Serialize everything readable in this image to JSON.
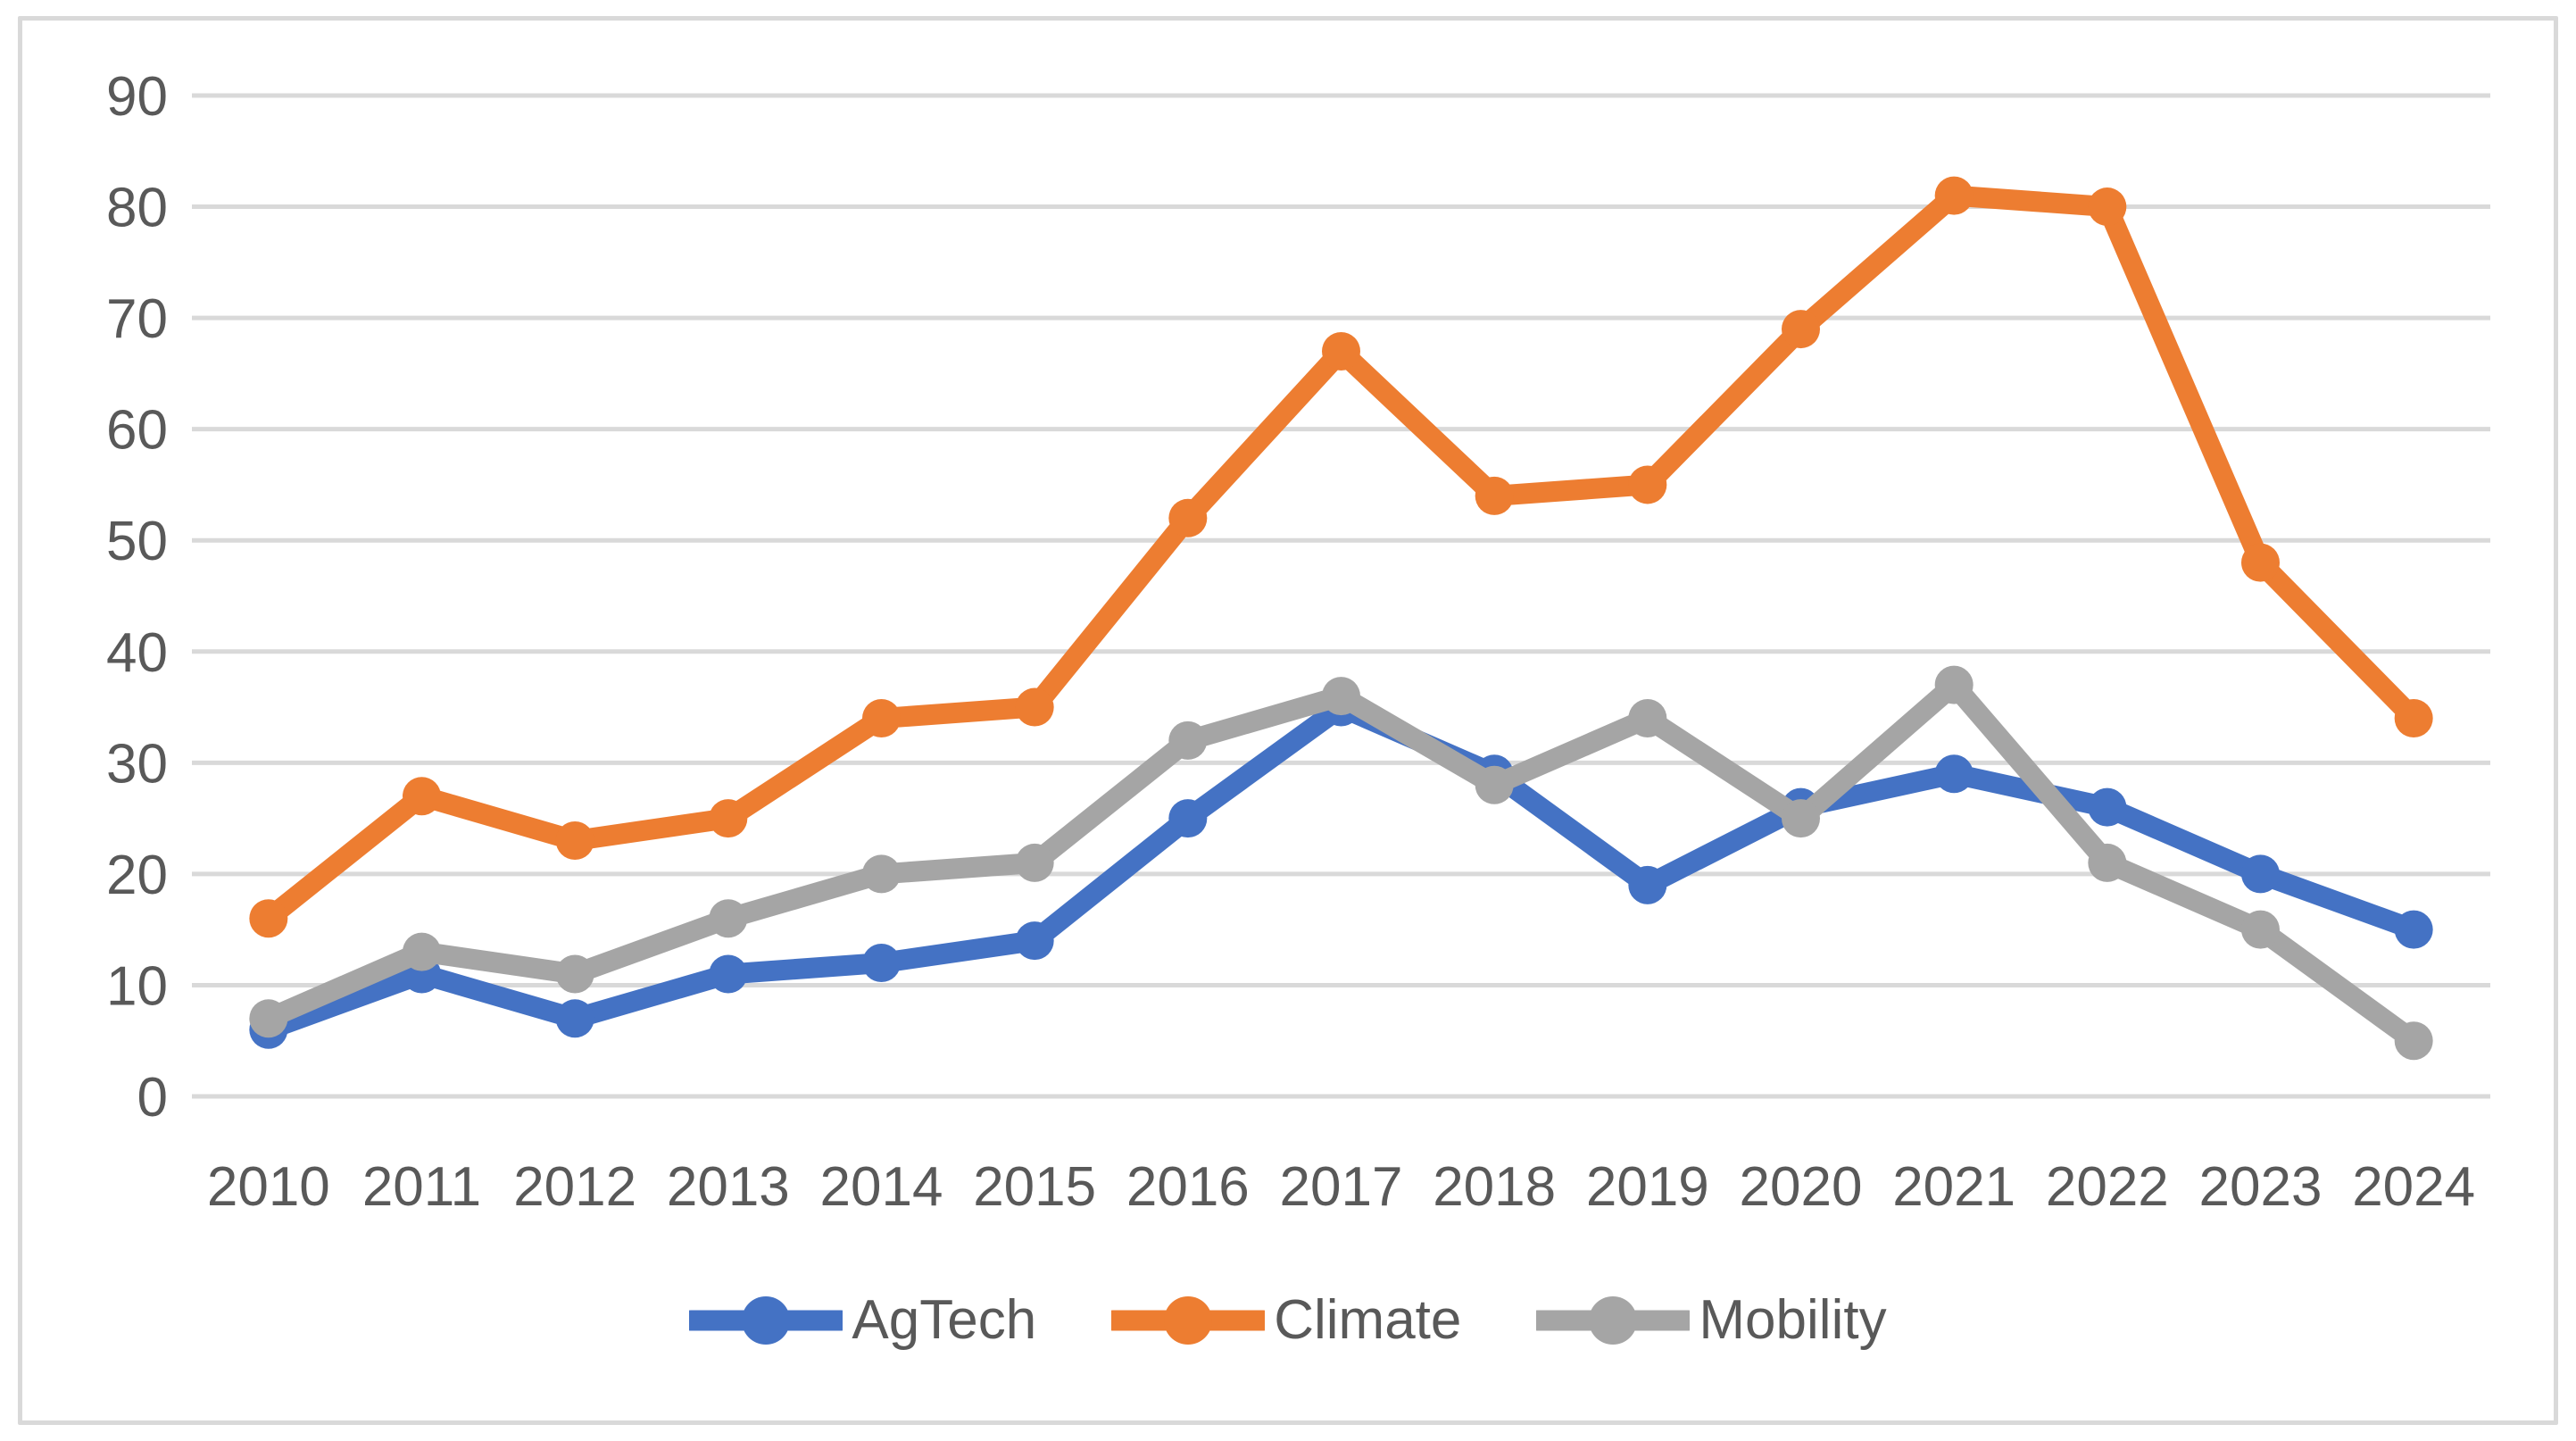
{
  "chart": {
    "background_color": "#FFFFFF",
    "border_color": "#D9D9D9",
    "grid_color": "#D9D9D9",
    "label_color": "#595959"
  },
  "chart_data": {
    "type": "line",
    "title": "",
    "xlabel": "",
    "ylabel": "",
    "categories": [
      "2010",
      "2011",
      "2012",
      "2013",
      "2014",
      "2015",
      "2016",
      "2017",
      "2018",
      "2019",
      "2020",
      "2021",
      "2022",
      "2023",
      "2024"
    ],
    "series": [
      {
        "name": "AgTech",
        "color": "#4472C4",
        "values": [
          6,
          11,
          7,
          11,
          12,
          14,
          25,
          35,
          29,
          19,
          26,
          29,
          26,
          20,
          15
        ]
      },
      {
        "name": "Climate",
        "color": "#ED7D31",
        "values": [
          16,
          27,
          23,
          25,
          34,
          35,
          52,
          67,
          54,
          55,
          69,
          81,
          80,
          48,
          34
        ]
      },
      {
        "name": "Mobility",
        "color": "#A5A5A5",
        "values": [
          7,
          13,
          11,
          16,
          20,
          21,
          32,
          36,
          28,
          34,
          25,
          37,
          21,
          15,
          5
        ]
      }
    ],
    "ylim": [
      0,
      90
    ],
    "ytick_step": 10,
    "grid": true,
    "legend_position": "bottom",
    "marker": "circle"
  }
}
